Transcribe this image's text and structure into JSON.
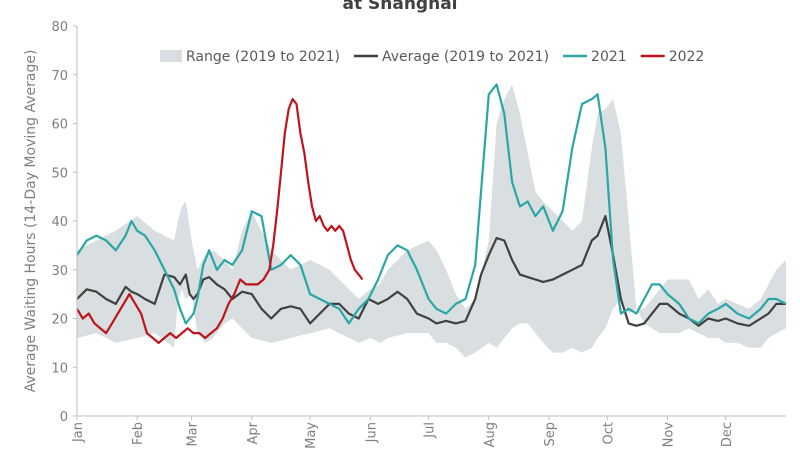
{
  "chart_data": {
    "type": "line",
    "title": "at Shanghai",
    "ylabel": "Average Waiting Hours (14-Day Moving Average)",
    "xlabel": "",
    "ylim": [
      0,
      80
    ],
    "yticks": [
      0,
      10,
      20,
      30,
      40,
      50,
      60,
      70,
      80
    ],
    "xlim": [
      0,
      365
    ],
    "xticks": [
      {
        "label": "Jan",
        "day": 0
      },
      {
        "label": "Feb",
        "day": 31
      },
      {
        "label": "Mar",
        "day": 59
      },
      {
        "label": "Apr",
        "day": 90
      },
      {
        "label": "May",
        "day": 120
      },
      {
        "label": "Jun",
        "day": 151
      },
      {
        "label": "Jul",
        "day": 181
      },
      {
        "label": "Aug",
        "day": 212
      },
      {
        "label": "Sep",
        "day": 243
      },
      {
        "label": "Oct",
        "day": 273
      },
      {
        "label": "Nov",
        "day": 304
      },
      {
        "label": "Dec",
        "day": 334
      }
    ],
    "grid": false,
    "legend_position": "top",
    "range": {
      "name": "Range (2019 to 2021)",
      "color": "#d9dfe0",
      "x": [
        0,
        10,
        20,
        31,
        40,
        50,
        52,
        54,
        56,
        59,
        62,
        66,
        70,
        76,
        80,
        85,
        90,
        100,
        110,
        120,
        130,
        140,
        145,
        151,
        156,
        160,
        170,
        181,
        185,
        190,
        195,
        200,
        205,
        212,
        216,
        220,
        224,
        228,
        232,
        236,
        240,
        245,
        250,
        255,
        260,
        265,
        268,
        272,
        274,
        276,
        280,
        284,
        288,
        292,
        296,
        300,
        304,
        310,
        315,
        320,
        325,
        330,
        334,
        340,
        346,
        352,
        356,
        360,
        365
      ],
      "low": [
        16,
        17,
        15,
        16,
        17,
        14,
        24,
        26,
        24,
        25,
        17,
        15,
        16,
        19,
        20,
        18,
        16,
        15,
        16,
        17,
        18,
        16,
        15,
        16,
        15,
        16,
        17,
        17,
        15,
        15,
        14,
        12,
        13,
        15,
        14,
        16,
        18,
        19,
        19,
        17,
        15,
        13,
        13,
        14,
        13,
        14,
        16,
        18,
        20,
        22,
        24,
        21,
        22,
        19,
        18,
        17,
        17,
        17,
        18,
        17,
        16,
        16,
        15,
        15,
        14,
        14,
        16,
        17,
        18
      ],
      "high": [
        34,
        36,
        38,
        41,
        38,
        36,
        40,
        43,
        44,
        36,
        30,
        33,
        34,
        32,
        30,
        38,
        42,
        34,
        30,
        32,
        30,
        26,
        24,
        26,
        27,
        30,
        34,
        36,
        34,
        30,
        25,
        22,
        24,
        36,
        60,
        65,
        68,
        62,
        54,
        46,
        44,
        42,
        40,
        38,
        40,
        55,
        62,
        63,
        64,
        65,
        58,
        40,
        22,
        22,
        24,
        26,
        28,
        28,
        28,
        24,
        26,
        23,
        24,
        23,
        22,
        24,
        27,
        30,
        32
      ]
    },
    "series": [
      {
        "name": "Average (2019 to 2021)",
        "color": "#404040",
        "x": [
          0,
          5,
          10,
          15,
          20,
          25,
          28,
          31,
          35,
          40,
          45,
          50,
          53,
          56,
          58,
          60,
          62,
          65,
          68,
          72,
          76,
          80,
          85,
          90,
          95,
          100,
          105,
          110,
          115,
          120,
          125,
          130,
          135,
          140,
          145,
          150,
          155,
          160,
          165,
          170,
          175,
          181,
          185,
          190,
          195,
          200,
          205,
          208,
          212,
          216,
          220,
          224,
          228,
          232,
          236,
          240,
          245,
          250,
          255,
          260,
          265,
          268,
          272,
          276,
          280,
          284,
          288,
          292,
          296,
          300,
          304,
          310,
          315,
          320,
          325,
          330,
          334,
          340,
          346,
          352,
          356,
          360,
          365
        ],
        "values": [
          24,
          26,
          25.5,
          24,
          23,
          26.5,
          25.5,
          25,
          24,
          23,
          29,
          28.5,
          27,
          29,
          25,
          24,
          25,
          28,
          28.5,
          27,
          26,
          24,
          25.5,
          25,
          22,
          20,
          22,
          22.5,
          22,
          19,
          21,
          23,
          23,
          21,
          20,
          24,
          23,
          24,
          25.5,
          24,
          21,
          20,
          19,
          19.5,
          19,
          19.5,
          24,
          29,
          33,
          36.5,
          36,
          32,
          29,
          28.5,
          28,
          27.5,
          28,
          29,
          30,
          31,
          36,
          37,
          41,
          33,
          24,
          19,
          18.5,
          19,
          21,
          23,
          23,
          21,
          20,
          18.5,
          20,
          19.5,
          20,
          19,
          18.5,
          20,
          21,
          23,
          23
        ]
      },
      {
        "name": "2021",
        "color": "#2aa6a6",
        "x": [
          0,
          5,
          10,
          15,
          20,
          25,
          28,
          31,
          35,
          40,
          45,
          50,
          53,
          56,
          58,
          60,
          62,
          65,
          68,
          72,
          76,
          80,
          85,
          90,
          95,
          100,
          105,
          110,
          115,
          120,
          125,
          130,
          135,
          140,
          145,
          150,
          155,
          160,
          165,
          170,
          175,
          181,
          185,
          190,
          195,
          200,
          205,
          208,
          212,
          216,
          220,
          224,
          228,
          232,
          236,
          240,
          245,
          250,
          255,
          260,
          265,
          268,
          272,
          276,
          280,
          284,
          288,
          292,
          296,
          300,
          304,
          310,
          315,
          320,
          325,
          330,
          334,
          340,
          346,
          352,
          356,
          360,
          365
        ],
        "values": [
          33,
          36,
          37,
          36,
          34,
          37,
          40,
          38,
          37,
          34,
          30,
          26,
          22,
          19,
          20,
          21,
          24,
          31,
          34,
          30,
          32,
          31,
          34,
          42,
          41,
          30,
          31,
          33,
          31,
          25,
          24,
          23,
          22,
          19,
          22,
          24,
          28,
          33,
          35,
          34,
          30,
          24,
          22,
          21,
          23,
          24,
          31,
          46,
          66,
          68,
          62,
          48,
          43,
          44,
          41,
          43,
          38,
          42,
          55,
          64,
          65,
          66,
          55,
          32,
          21,
          22,
          21,
          24,
          27,
          27,
          25,
          23,
          20,
          19,
          21,
          22,
          23,
          21,
          20,
          22,
          24,
          24,
          23
        ]
      },
      {
        "name": "2022",
        "color": "#c0141c",
        "x": [
          0,
          3,
          6,
          9,
          12,
          15,
          18,
          21,
          24,
          27,
          30,
          33,
          36,
          39,
          42,
          45,
          48,
          51,
          54,
          57,
          60,
          63,
          66,
          69,
          72,
          75,
          78,
          81,
          84,
          87,
          90,
          93,
          96,
          99,
          101,
          103,
          105,
          107,
          109,
          111,
          113,
          115,
          117,
          119,
          121,
          123,
          125,
          127,
          129,
          131,
          133,
          135,
          137,
          139,
          141,
          143,
          145,
          147
        ],
        "values": [
          22,
          20,
          21,
          19,
          18,
          17,
          19,
          21,
          23,
          25,
          23,
          21,
          17,
          16,
          15,
          16,
          17,
          16,
          17,
          18,
          17,
          17,
          16,
          17,
          18,
          20,
          23,
          25,
          28,
          27,
          27,
          27,
          28,
          30,
          35,
          42,
          50,
          58,
          63,
          65,
          64,
          58,
          54,
          48,
          43,
          40,
          41,
          39,
          38,
          39,
          38,
          39,
          38,
          35,
          32,
          30,
          29,
          28
        ]
      }
    ]
  }
}
